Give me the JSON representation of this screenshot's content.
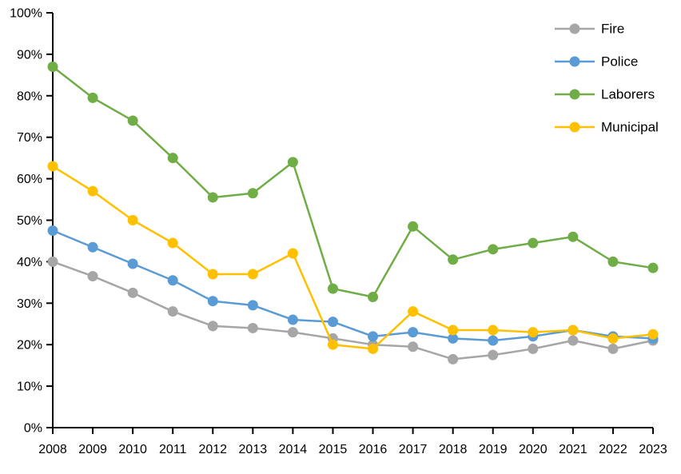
{
  "chart_data": {
    "type": "line",
    "title": "",
    "xlabel": "",
    "ylabel": "",
    "categories": [
      "2008",
      "2009",
      "2010",
      "2011",
      "2012",
      "2013",
      "2014",
      "2015",
      "2016",
      "2017",
      "2018",
      "2019",
      "2020",
      "2021",
      "2022",
      "2023"
    ],
    "series": [
      {
        "name": "Fire",
        "color": "#a6a6a6",
        "values": [
          40,
          36.5,
          32.5,
          28,
          24.5,
          24,
          23,
          21.5,
          20,
          19.5,
          16.5,
          17.5,
          19,
          21,
          19,
          21
        ]
      },
      {
        "name": "Police",
        "color": "#5b9bd5",
        "values": [
          47.5,
          43.5,
          39.5,
          35.5,
          30.5,
          29.5,
          26,
          25.5,
          22,
          23,
          21.5,
          21,
          22,
          23.5,
          22,
          21.5
        ]
      },
      {
        "name": "Laborers",
        "color": "#70ad47",
        "values": [
          87,
          79.5,
          74,
          65,
          55.5,
          56.5,
          64,
          33.5,
          31.5,
          48.5,
          40.5,
          43,
          44.5,
          46,
          40,
          38.5
        ]
      },
      {
        "name": "Municipal",
        "color": "#ffc000",
        "values": [
          63,
          57,
          50,
          44.5,
          37,
          37,
          42,
          20,
          19,
          28,
          23.5,
          23.5,
          23,
          23.5,
          21.5,
          22.5
        ]
      }
    ],
    "ylim": [
      0,
      100
    ],
    "ytick_step": 10,
    "ytick_suffix": "%",
    "grid": false,
    "legend_position": "top-right-inside",
    "axis_color": "#000000",
    "background": "#ffffff",
    "marker": "circle"
  }
}
